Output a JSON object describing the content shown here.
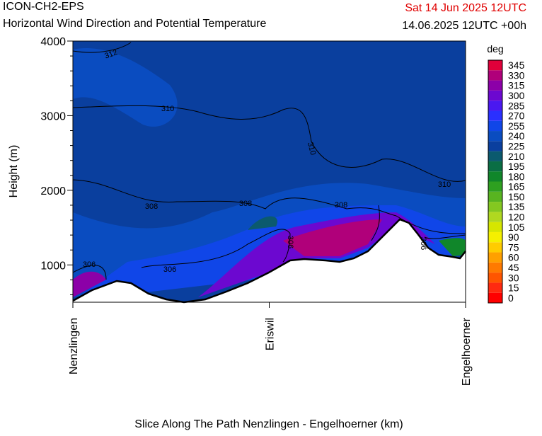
{
  "chart_data": {
    "type": "cross-section",
    "title": "ICON-CH2-EPS",
    "subtitle": "Horizontal Wind Direction and Potential Temperature",
    "valid_time": "Sat 14 Jun 2025 12UTC",
    "run_time": "14.06.2025 12UTC +00h",
    "y_label": "Height (m)",
    "x_label": "Slice Along The Path Nenzlingen - Engelhoerner (km)",
    "categories": [
      "Nenzlingen",
      "Eriswil",
      "Engelhoerner"
    ],
    "ylim": [
      500,
      4000
    ],
    "yticks": [
      1000,
      2000,
      3000,
      4000
    ],
    "yminor": [
      600,
      800,
      1200,
      1400,
      1600,
      1800,
      2200,
      2400,
      2600,
      2800,
      3200,
      3400,
      3600,
      3800
    ],
    "contour_labels": [
      312,
      310,
      310,
      310,
      308,
      308,
      308,
      306,
      306,
      306,
      306
    ],
    "colorbar": {
      "title": "deg",
      "levels": [
        0,
        15,
        30,
        45,
        60,
        75,
        90,
        105,
        120,
        135,
        150,
        165,
        180,
        195,
        210,
        225,
        240,
        255,
        270,
        285,
        300,
        315,
        330,
        345
      ],
      "colors": [
        "#ff0000",
        "#ff2a10",
        "#ff5500",
        "#ff7a00",
        "#ffa000",
        "#ffcc00",
        "#f5f000",
        "#d6e600",
        "#b0d820",
        "#84c820",
        "#58b420",
        "#2ea020",
        "#10862a",
        "#0a6e44",
        "#0b5a6e",
        "#0a3f9e",
        "#0a4cc0",
        "#1046e8",
        "#2a30ff",
        "#4a18f0",
        "#6c08d0",
        "#8c00a8",
        "#b0007a",
        "#e0003a"
      ]
    }
  }
}
